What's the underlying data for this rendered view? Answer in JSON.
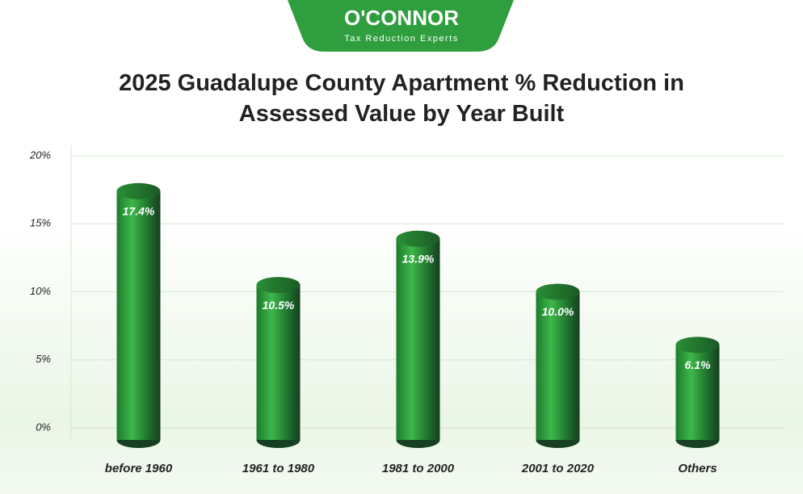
{
  "logo": {
    "name": "O'CONNOR",
    "tagline": "Tax Reduction Experts"
  },
  "chart_data": {
    "type": "bar",
    "title": "2025 Guadalupe County Apartment % Reduction in Assessed Value by Year Built",
    "categories": [
      "before 1960",
      "1961 to 1980",
      "1981 to 2000",
      "2001 to 2020",
      "Others"
    ],
    "values": [
      17.4,
      10.5,
      13.9,
      10.0,
      6.1
    ],
    "value_labels": [
      "17.4%",
      "10.5%",
      "13.9%",
      "10.0%",
      "6.1%"
    ],
    "color": "#2e9e3e",
    "ylim": [
      0,
      20
    ],
    "yticks": [
      {
        "value": 0,
        "label": "0%"
      },
      {
        "value": 5,
        "label": "5%"
      },
      {
        "value": 10,
        "label": "10%"
      },
      {
        "value": 15,
        "label": "15%"
      },
      {
        "value": 20,
        "label": "20%"
      }
    ],
    "grid": true
  }
}
